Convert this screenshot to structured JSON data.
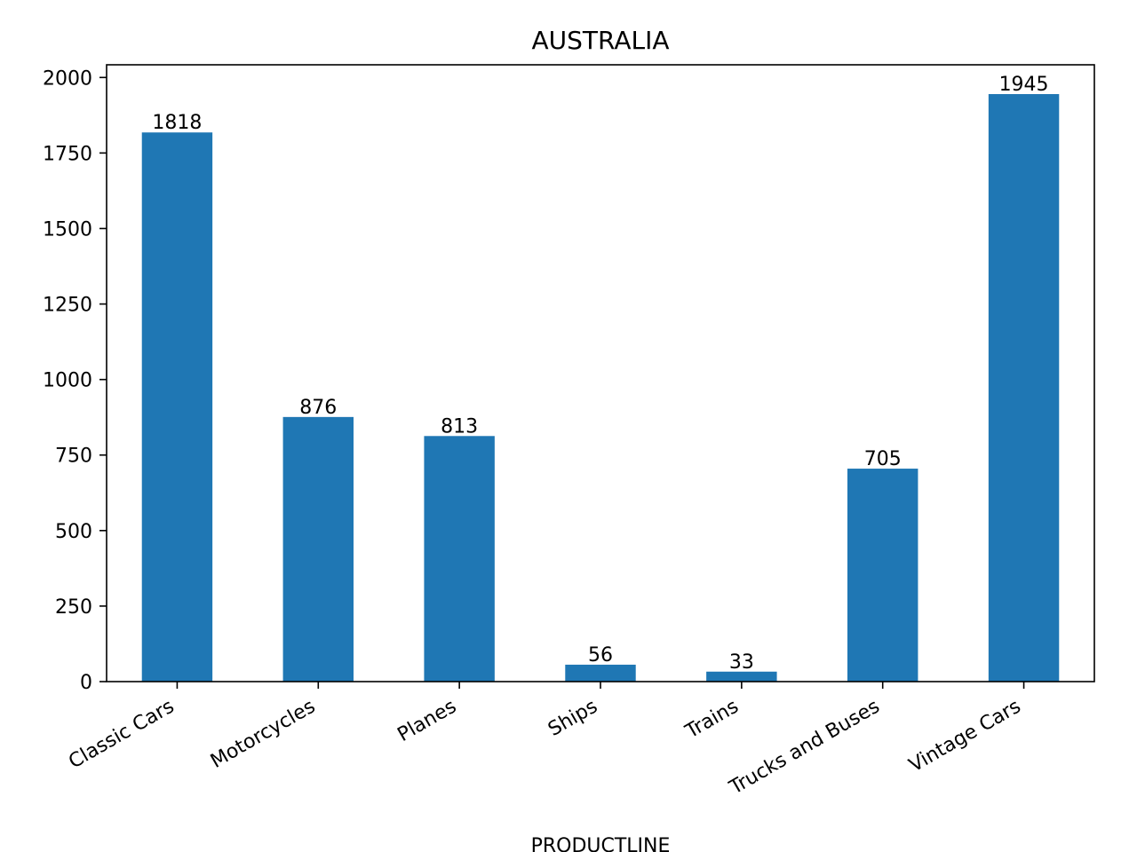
{
  "chart_data": {
    "type": "bar",
    "title": "AUSTRALIA",
    "xlabel": "PRODUCTLINE",
    "ylabel": "",
    "categories": [
      "Classic Cars",
      "Motorcycles",
      "Planes",
      "Ships",
      "Trains",
      "Trucks and Buses",
      "Vintage Cars"
    ],
    "values": [
      1818,
      876,
      813,
      56,
      33,
      705,
      1945
    ],
    "data_labels": [
      "1818",
      "876",
      "813",
      "56",
      "33",
      "705",
      "1945"
    ],
    "ylim": [
      0,
      2042
    ],
    "yticks": [
      0,
      250,
      500,
      750,
      1000,
      1250,
      1500,
      1750,
      2000
    ],
    "ytick_labels": [
      "0",
      "250",
      "500",
      "750",
      "1000",
      "1250",
      "1500",
      "1750",
      "2000"
    ],
    "bar_color": "#1f77b4",
    "grid": false,
    "legend": "none"
  }
}
